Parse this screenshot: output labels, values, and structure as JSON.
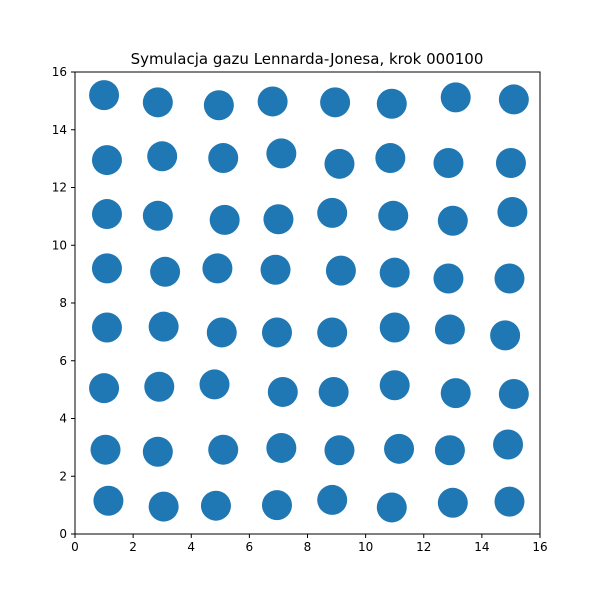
{
  "chart_data": {
    "type": "scatter",
    "title": "Symulacja gazu Lennarda-Jonesa, krok 000100",
    "xlabel": "",
    "ylabel": "",
    "xlim": [
      0,
      16
    ],
    "ylim": [
      0,
      16
    ],
    "xticks": [
      0,
      2,
      4,
      6,
      8,
      10,
      12,
      14,
      16
    ],
    "yticks": [
      0,
      2,
      4,
      6,
      8,
      10,
      12,
      14,
      16
    ],
    "grid": false,
    "marker_color": "#1f77b4",
    "points": [
      {
        "x": 1.0,
        "y": 15.2
      },
      {
        "x": 2.85,
        "y": 14.95
      },
      {
        "x": 4.95,
        "y": 14.85
      },
      {
        "x": 6.8,
        "y": 14.98
      },
      {
        "x": 8.95,
        "y": 14.95
      },
      {
        "x": 10.9,
        "y": 14.9
      },
      {
        "x": 13.1,
        "y": 15.12
      },
      {
        "x": 15.1,
        "y": 15.05
      },
      {
        "x": 1.1,
        "y": 12.95
      },
      {
        "x": 3.0,
        "y": 13.08
      },
      {
        "x": 5.1,
        "y": 13.02
      },
      {
        "x": 7.1,
        "y": 13.18
      },
      {
        "x": 9.1,
        "y": 12.82
      },
      {
        "x": 10.85,
        "y": 13.02
      },
      {
        "x": 12.85,
        "y": 12.85
      },
      {
        "x": 15.0,
        "y": 12.85
      },
      {
        "x": 1.1,
        "y": 11.08
      },
      {
        "x": 2.85,
        "y": 11.02
      },
      {
        "x": 5.15,
        "y": 10.88
      },
      {
        "x": 7.0,
        "y": 10.9
      },
      {
        "x": 8.85,
        "y": 11.12
      },
      {
        "x": 10.95,
        "y": 11.02
      },
      {
        "x": 13.0,
        "y": 10.85
      },
      {
        "x": 15.05,
        "y": 11.15
      },
      {
        "x": 1.1,
        "y": 9.2
      },
      {
        "x": 3.1,
        "y": 9.08
      },
      {
        "x": 4.9,
        "y": 9.2
      },
      {
        "x": 6.9,
        "y": 9.15
      },
      {
        "x": 9.15,
        "y": 9.12
      },
      {
        "x": 11.0,
        "y": 9.05
      },
      {
        "x": 12.85,
        "y": 8.85
      },
      {
        "x": 14.95,
        "y": 8.85
      },
      {
        "x": 1.1,
        "y": 7.15
      },
      {
        "x": 3.05,
        "y": 7.18
      },
      {
        "x": 5.05,
        "y": 6.98
      },
      {
        "x": 6.95,
        "y": 6.98
      },
      {
        "x": 8.85,
        "y": 6.98
      },
      {
        "x": 11.0,
        "y": 7.15
      },
      {
        "x": 12.9,
        "y": 7.08
      },
      {
        "x": 14.8,
        "y": 6.88
      },
      {
        "x": 1.0,
        "y": 5.05
      },
      {
        "x": 2.9,
        "y": 5.1
      },
      {
        "x": 4.8,
        "y": 5.18
      },
      {
        "x": 7.15,
        "y": 4.92
      },
      {
        "x": 8.9,
        "y": 4.92
      },
      {
        "x": 11.0,
        "y": 5.15
      },
      {
        "x": 13.1,
        "y": 4.88
      },
      {
        "x": 15.1,
        "y": 4.85
      },
      {
        "x": 1.05,
        "y": 2.92
      },
      {
        "x": 2.85,
        "y": 2.85
      },
      {
        "x": 5.1,
        "y": 2.92
      },
      {
        "x": 7.1,
        "y": 2.98
      },
      {
        "x": 9.1,
        "y": 2.9
      },
      {
        "x": 11.15,
        "y": 2.95
      },
      {
        "x": 12.9,
        "y": 2.9
      },
      {
        "x": 14.9,
        "y": 3.1
      },
      {
        "x": 1.15,
        "y": 1.15
      },
      {
        "x": 3.05,
        "y": 0.95
      },
      {
        "x": 4.85,
        "y": 0.98
      },
      {
        "x": 6.95,
        "y": 1.0
      },
      {
        "x": 8.85,
        "y": 1.18
      },
      {
        "x": 10.9,
        "y": 0.92
      },
      {
        "x": 13.0,
        "y": 1.08
      },
      {
        "x": 14.95,
        "y": 1.12
      }
    ]
  }
}
